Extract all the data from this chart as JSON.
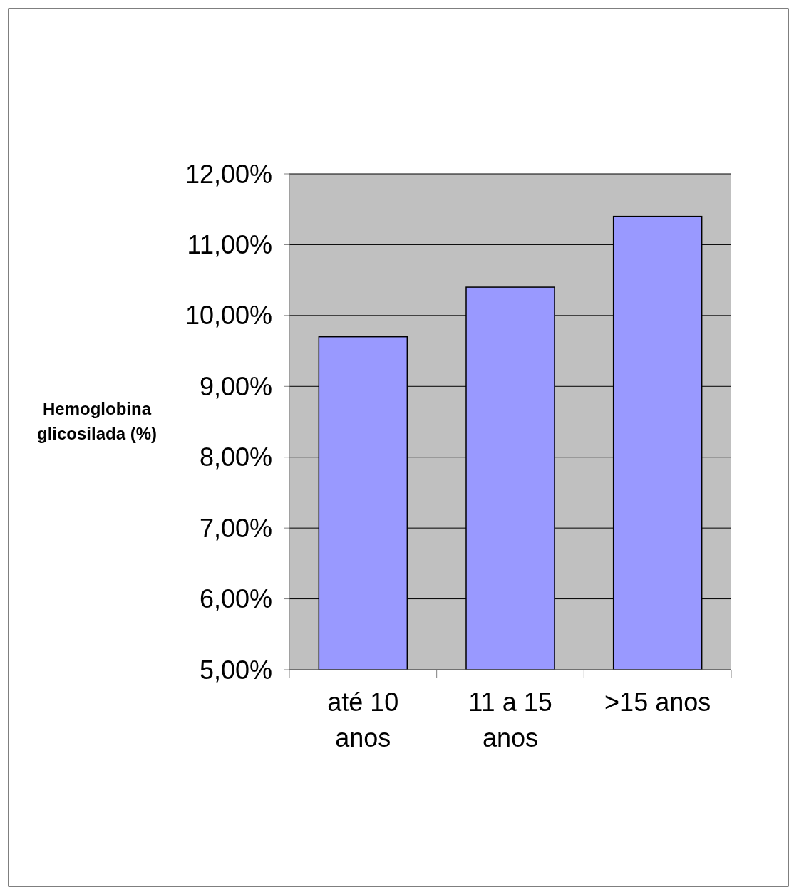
{
  "chart_data": {
    "type": "bar",
    "ylabel": "Hemoglobina glicosilada (%)",
    "categories": [
      "até 10 anos",
      "11 a 15 anos",
      ">15 anos"
    ],
    "values": [
      9.7,
      10.4,
      11.4
    ],
    "color": "#9999ff",
    "ylim": [
      5,
      12
    ],
    "yticks": [
      {
        "value": 5,
        "label": "5,00%"
      },
      {
        "value": 6,
        "label": "6,00%"
      },
      {
        "value": 7,
        "label": "7,00%"
      },
      {
        "value": 8,
        "label": "8,00%"
      },
      {
        "value": 9,
        "label": "9,00%"
      },
      {
        "value": 10,
        "label": "10,00%"
      },
      {
        "value": 11,
        "label": "11,00%"
      },
      {
        "value": 12,
        "label": "12,00%"
      }
    ],
    "grid": "y"
  }
}
